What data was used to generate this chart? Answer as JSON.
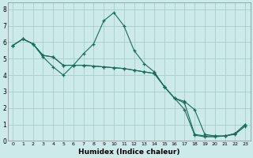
{
  "xlabel": "Humidex (Indice chaleur)",
  "bg_color": "#cceaea",
  "grid_color": "#aacccc",
  "line_color": "#1a6b5a",
  "xlim": [
    -0.5,
    23.5
  ],
  "ylim": [
    0,
    8.4
  ],
  "xticks": [
    0,
    1,
    2,
    3,
    4,
    5,
    6,
    7,
    8,
    9,
    10,
    11,
    12,
    13,
    14,
    15,
    16,
    17,
    18,
    19,
    20,
    21,
    22,
    23
  ],
  "yticks": [
    0,
    1,
    2,
    3,
    4,
    5,
    6,
    7,
    8
  ],
  "series": [
    {
      "x": [
        0,
        1,
        2,
        3,
        4,
        5,
        6,
        7,
        8,
        9,
        10,
        11,
        12,
        13,
        14,
        15,
        16,
        17,
        18,
        19,
        20,
        21,
        22,
        23
      ],
      "y": [
        5.8,
        6.2,
        5.9,
        5.1,
        4.5,
        4.0,
        4.6,
        5.3,
        5.9,
        7.3,
        7.8,
        7.0,
        5.5,
        4.7,
        4.2,
        3.3,
        2.6,
        2.4,
        1.9,
        0.4,
        0.3,
        0.3,
        0.45,
        1.0
      ]
    },
    {
      "x": [
        0,
        1,
        2,
        3,
        4,
        5,
        6,
        7,
        8,
        9,
        10,
        11,
        12,
        13,
        14,
        15,
        16,
        17,
        18,
        19,
        20,
        21,
        22,
        23
      ],
      "y": [
        5.8,
        6.2,
        5.9,
        5.2,
        5.1,
        4.6,
        4.6,
        4.6,
        4.55,
        4.5,
        4.45,
        4.4,
        4.3,
        4.2,
        4.1,
        3.3,
        2.6,
        2.3,
        0.4,
        0.3,
        0.3,
        0.3,
        0.45,
        1.0
      ]
    },
    {
      "x": [
        0,
        1,
        2,
        3,
        4,
        5,
        6,
        7,
        8,
        9,
        10,
        11,
        12,
        13,
        14,
        15,
        16,
        17,
        18,
        19,
        20,
        21,
        22,
        23
      ],
      "y": [
        5.8,
        6.2,
        5.9,
        5.2,
        5.1,
        4.6,
        4.6,
        4.6,
        4.55,
        4.5,
        4.45,
        4.4,
        4.3,
        4.2,
        4.1,
        3.3,
        2.6,
        1.9,
        0.35,
        0.25,
        0.25,
        0.3,
        0.4,
        0.9
      ]
    }
  ]
}
